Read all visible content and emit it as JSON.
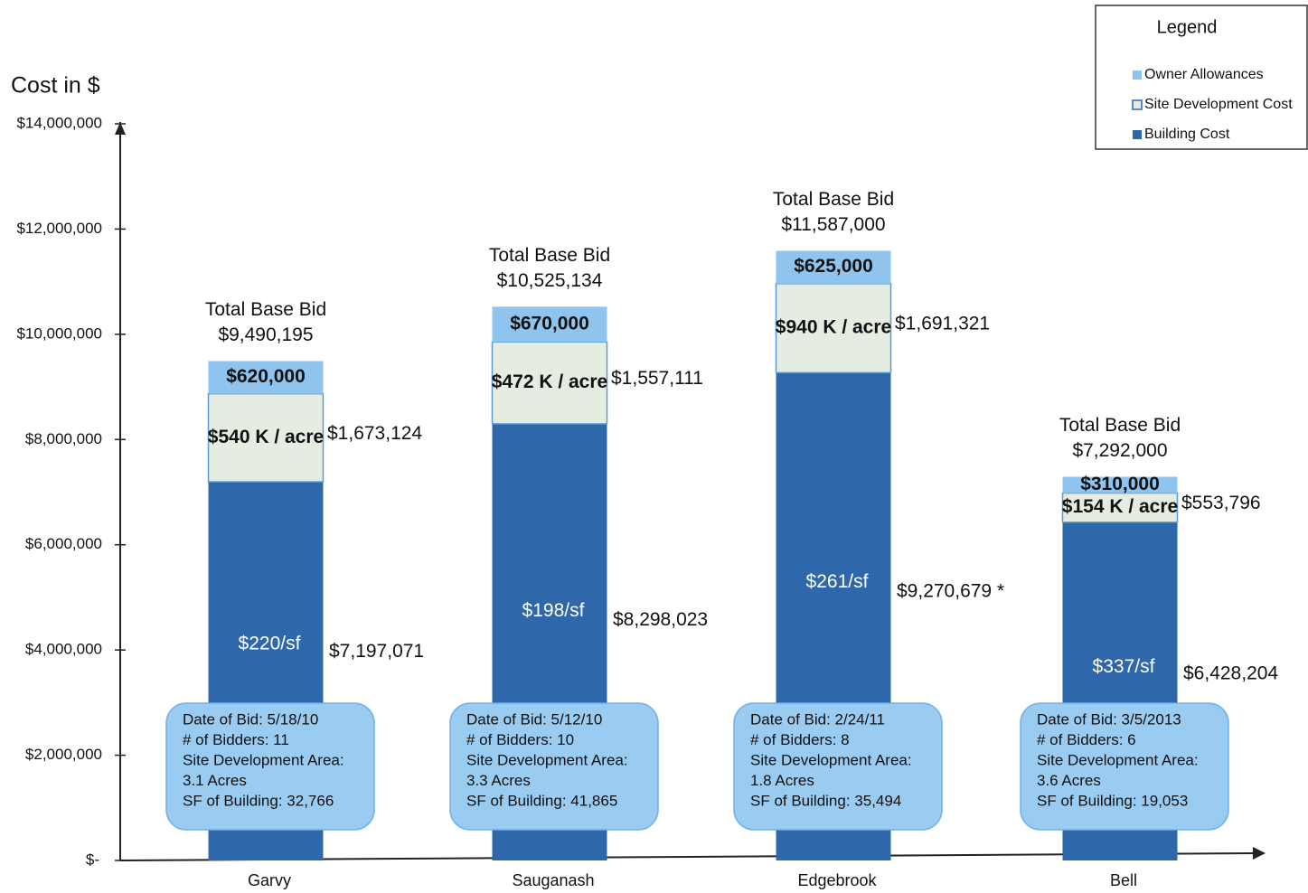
{
  "chart_data": {
    "type": "stacked_bar",
    "y_axis_label": "Cost in $",
    "categories": [
      "Garvy",
      "Sauganash",
      "Edgebrook",
      "Bell"
    ],
    "series": [
      {
        "name": "Building Cost",
        "color": "#2f68aa",
        "values": [
          7197071,
          8298023,
          9270679,
          6428204
        ],
        "value_labels": [
          "$7,197,071",
          "$8,298,023",
          "$9,270,679 *",
          "$6,428,204"
        ]
      },
      {
        "name": "Site Development Cost",
        "color": "#e5ece0",
        "values": [
          1673124,
          1557111,
          1691321,
          553796
        ],
        "value_labels": [
          "$1,673,124",
          "$1,557,111",
          "$1,691,321",
          "$553,796"
        ]
      },
      {
        "name": "Owner Allowances",
        "color": "#8ec4ee",
        "values": [
          620000,
          670000,
          625000,
          310000
        ],
        "value_labels": [
          "$620,000",
          "$670,000",
          "$625,000",
          "$310,000"
        ]
      }
    ],
    "notes": [
      {
        "total_label": "Total Base Bid",
        "total": "$9,490,195",
        "per_acre": "$540 K / acre",
        "per_sf": "$220/sf",
        "info": [
          "Date of Bid: 5/18/10",
          "# of Bidders: 11",
          "Site Development Area:",
          "3.1 Acres",
          "SF of Building: 32,766"
        ]
      },
      {
        "total_label": "Total Base Bid",
        "total": "$10,525,134",
        "per_acre": "$472 K / acre",
        "per_sf": "$198/sf",
        "info": [
          "Date of Bid: 5/12/10",
          "# of Bidders: 10",
          "Site Development Area:",
          "3.3 Acres",
          "SF of Building: 41,865"
        ]
      },
      {
        "total_label": "Total Base Bid",
        "total": "$11,587,000",
        "per_acre": "$940 K / acre",
        "per_sf": "$261/sf",
        "info": [
          "Date of Bid: 2/24/11",
          "# of Bidders: 8",
          "Site Development Area:",
          "1.8 Acres",
          "SF of Building: 35,494"
        ]
      },
      {
        "total_label": "Total Base Bid",
        "total": "$7,292,000",
        "per_acre": "$154 K / acre",
        "per_sf": "$337/sf",
        "info": [
          "Date of Bid: 3/5/2013",
          "# of Bidders: 6",
          "Site Development Area:",
          "3.6 Acres",
          "SF of Building: 19,053"
        ]
      }
    ],
    "ylim": [
      0,
      14000000
    ],
    "yticks": [
      {
        "value": 0,
        "label": "$-"
      },
      {
        "value": 2000000,
        "label": "$2,000,000"
      },
      {
        "value": 4000000,
        "label": "$4,000,000"
      },
      {
        "value": 6000000,
        "label": "$6,000,000"
      },
      {
        "value": 8000000,
        "label": "$8,000,000"
      },
      {
        "value": 10000000,
        "label": "$10,000,000"
      },
      {
        "value": 12000000,
        "label": "$12,000,000"
      },
      {
        "value": 14000000,
        "label": "$14,000,000"
      }
    ],
    "legend_title": "Legend",
    "legend": "top-right"
  }
}
